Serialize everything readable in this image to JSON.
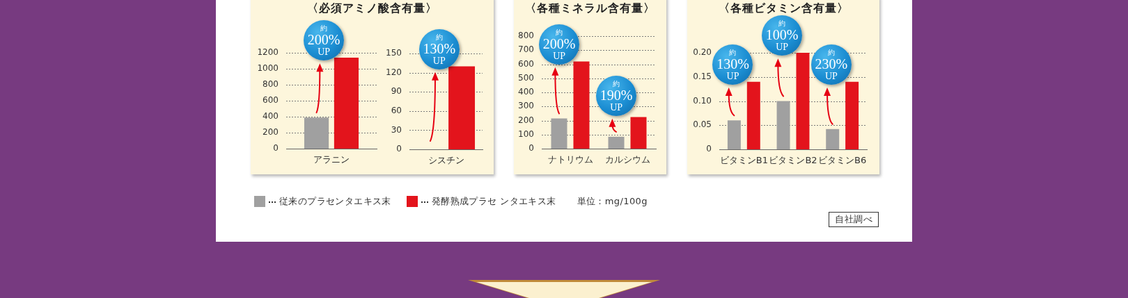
{
  "chart_data": [
    {
      "type": "bar",
      "title": "〈必須アミノ酸含有量〉",
      "categories": [
        "アラニン"
      ],
      "series": [
        {
          "name": "従来のプラセンタエキス末",
          "color": "#a0a0a0",
          "values": [
            390
          ]
        },
        {
          "name": "発酵熟成プラセ ンタエキス末",
          "color": "#e3141c",
          "values": [
            1140
          ]
        }
      ],
      "ylim": [
        0,
        1200
      ],
      "yticks": [
        0,
        200,
        400,
        600,
        800,
        1000,
        1200
      ],
      "grid": "y",
      "legend": "bottom",
      "annotations": [
        {
          "text": "約 200% UP",
          "x": "アラニン",
          "y": 1140
        },
        "単位：mg/100g",
        "自社調べ"
      ]
    },
    {
      "type": "bar",
      "categories": [
        "シスチン"
      ],
      "series": [
        {
          "color": "#a0a0a0",
          "values": [
            null
          ]
        },
        {
          "color": "#e3141c",
          "values": [
            130
          ]
        }
      ],
      "ylim": [
        0,
        150
      ],
      "yticks": [
        0,
        30,
        60,
        90,
        120,
        150
      ],
      "grid": "y",
      "annotations": [
        {
          "text": "約 130% UP",
          "x": "シスチン",
          "y": 130
        }
      ]
    },
    {
      "type": "bar",
      "title": "〈各種ミネラル含有量〉",
      "categories": [
        "ナトリウム",
        "カルシウム"
      ],
      "series": [
        {
          "color": "#a0a0a0",
          "values": [
            215,
            85
          ]
        },
        {
          "color": "#e3141c",
          "values": [
            620,
            225
          ]
        }
      ],
      "ylim": [
        0,
        800
      ],
      "yticks": [
        0,
        100,
        200,
        300,
        400,
        500,
        600,
        700,
        800
      ],
      "grid": "y",
      "annotations": [
        {
          "text": "約 200% UP",
          "x": "ナトリウム",
          "y": 620
        },
        {
          "text": "約 190% UP",
          "x": "カルシウム",
          "y": 225
        }
      ]
    },
    {
      "type": "bar",
      "title": "〈各種ビタミン含有量〉",
      "categories": [
        "ビタミンB1",
        "ビタミンB2",
        "ビタミンB6"
      ],
      "series": [
        {
          "color": "#a0a0a0",
          "values": [
            0.06,
            0.1,
            0.042
          ]
        },
        {
          "color": "#e3141c",
          "values": [
            0.14,
            0.2,
            0.14
          ]
        }
      ],
      "ylim": [
        0,
        0.2
      ],
      "yticks": [
        0,
        0.05,
        {
          "value": 0.1,
          "label": "0.10"
        },
        0.15,
        {
          "value": 0.2,
          "label": "0.20"
        }
      ],
      "grid": "y",
      "annotations": [
        {
          "text": "約 130% UP",
          "x": "ビタミンB1",
          "y": 0.14
        },
        {
          "text": "約 100% UP",
          "x": "ビタミンB2",
          "y": 0.2
        },
        {
          "text": "約 230% UP",
          "x": "ビタミンB6",
          "y": 0.14
        }
      ]
    }
  ]
}
